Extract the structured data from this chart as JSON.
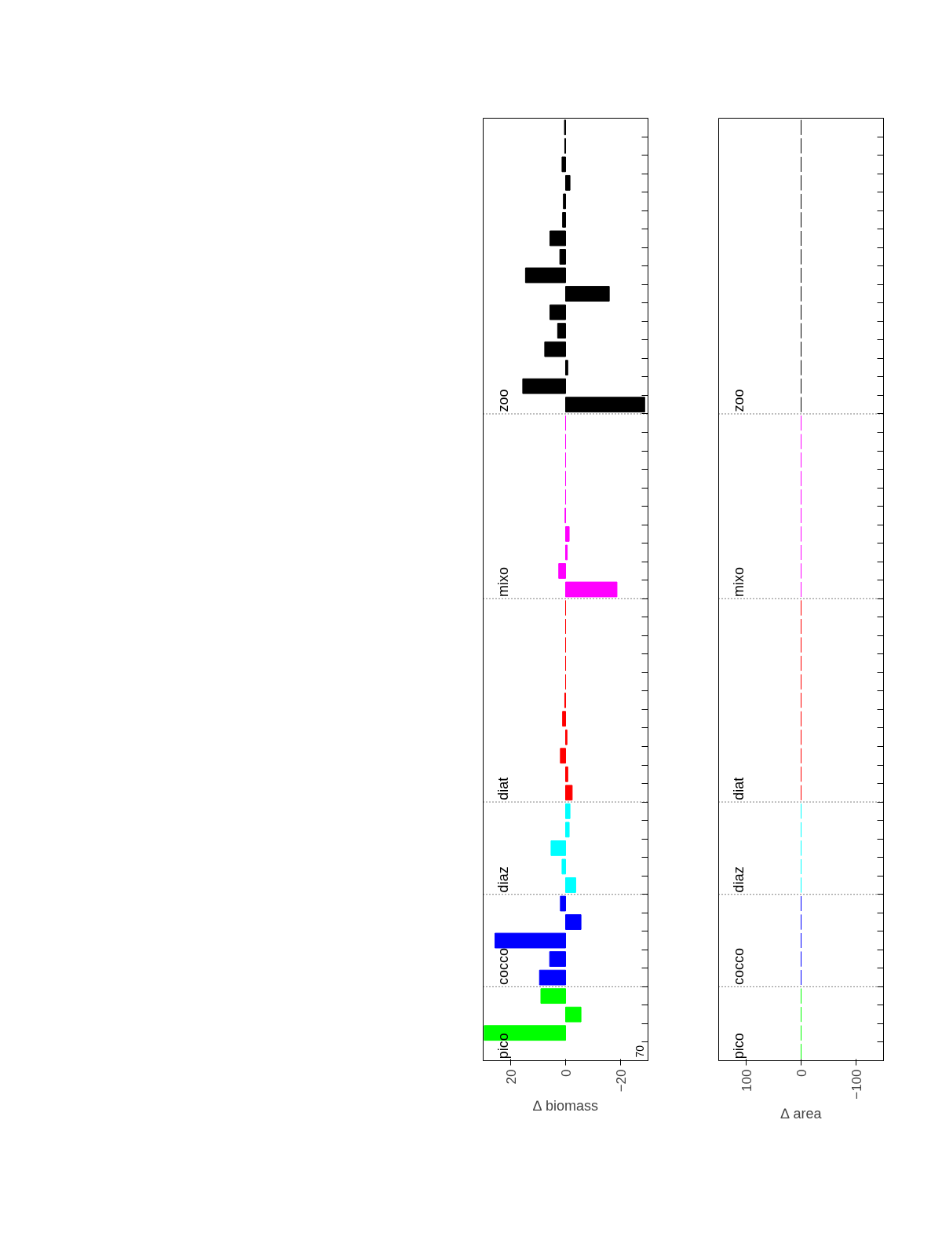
{
  "chart_data": [
    {
      "type": "bar",
      "orientation": "horizontal",
      "xlabel": "∆ biomass",
      "xlim": [
        30,
        -30
      ],
      "xticks": [
        20,
        0,
        -20
      ],
      "grid": false,
      "legend": false,
      "tick_labels": "x",
      "categories": [
        null,
        null,
        null,
        null,
        null,
        null,
        null,
        null,
        null,
        null,
        null,
        null,
        null,
        null,
        null,
        null,
        null,
        null,
        null,
        null,
        null,
        null,
        null,
        null,
        null,
        null,
        null,
        null,
        null,
        null,
        null,
        null,
        null,
        null,
        null,
        null,
        null,
        null,
        null,
        null,
        null,
        null,
        null,
        null,
        null,
        null,
        null,
        null,
        null,
        null,
        null
      ],
      "annotations": [
        "zoo",
        "mixo",
        "diat",
        "diaz",
        "cocco",
        "pico",
        "70"
      ],
      "values": [
        0.4,
        0.3,
        1.3,
        -1.6,
        0.8,
        1.1,
        5.7,
        2.1,
        14.6,
        -15.9,
        5.7,
        2.9,
        7.6,
        -0.8,
        15.6,
        -28.8,
        0,
        0,
        0,
        0,
        0,
        0.2,
        -1.3,
        -0.6,
        2.5,
        -18.7,
        0,
        0,
        0,
        0,
        0,
        0.3,
        1.1,
        -0.5,
        1.9,
        -0.8,
        -2.4,
        -1.6,
        -1.3,
        5.3,
        1.3,
        -3.7,
        1.9,
        -5.6,
        25.7,
        5.8,
        9.5,
        9.0,
        -5.6,
        29.6,
        null
      ],
      "colors": [
        "#000000",
        "#000000",
        "#000000",
        "#000000",
        "#000000",
        "#000000",
        "#000000",
        "#000000",
        "#000000",
        "#000000",
        "#000000",
        "#000000",
        "#000000",
        "#000000",
        "#000000",
        "#000000",
        "#ff00ff",
        "#ff00ff",
        "#ff00ff",
        "#ff00ff",
        "#ff00ff",
        "#ff00ff",
        "#ff00ff",
        "#ff00ff",
        "#ff00ff",
        "#ff00ff",
        "#ff0000",
        "#ff0000",
        "#ff0000",
        "#ff0000",
        "#ff0000",
        "#ff0000",
        "#ff0000",
        "#ff0000",
        "#ff0000",
        "#ff0000",
        "#ff0000",
        "#00ffff",
        "#00ffff",
        "#00ffff",
        "#00ffff",
        "#00ffff",
        "#0000ff",
        "#0000ff",
        "#0000ff",
        "#0000ff",
        "#0000ff",
        "#00ff00",
        "#00ff00",
        "#00ff00",
        "#00ff00"
      ]
    },
    {
      "type": "bar",
      "orientation": "horizontal",
      "xlabel": "∆ area",
      "xlim": [
        150,
        -150
      ],
      "xticks": [
        100,
        0,
        -100
      ],
      "grid": false,
      "legend": false,
      "tick_labels": "x",
      "categories": [
        null,
        null,
        null,
        null,
        null,
        null,
        null,
        null,
        null,
        null,
        null,
        null,
        null,
        null,
        null,
        null,
        null,
        null,
        null,
        null,
        null,
        null,
        null,
        null,
        null,
        null,
        null,
        null,
        null,
        null,
        null,
        null,
        null,
        null,
        null,
        null,
        null,
        null,
        null,
        null,
        null,
        null,
        null,
        null,
        null,
        null,
        null,
        null,
        null,
        null,
        null
      ],
      "annotations": [
        "zoo",
        "mixo",
        "diat",
        "diaz",
        "cocco",
        "pico"
      ],
      "values": [
        0,
        0,
        0,
        0,
        0,
        0,
        0,
        0,
        0,
        0,
        0,
        0,
        0,
        0,
        0,
        0,
        0,
        0,
        0,
        0,
        0,
        0,
        0,
        0,
        0,
        0,
        0,
        0,
        0,
        0,
        0,
        0,
        0,
        0,
        0,
        0,
        0,
        0,
        0,
        0,
        0,
        0,
        0,
        0,
        0,
        0,
        0,
        0,
        0,
        0,
        0
      ],
      "colors": [
        "#000000",
        "#000000",
        "#000000",
        "#000000",
        "#000000",
        "#000000",
        "#000000",
        "#000000",
        "#000000",
        "#000000",
        "#000000",
        "#000000",
        "#000000",
        "#000000",
        "#000000",
        "#000000",
        "#ff00ff",
        "#ff00ff",
        "#ff00ff",
        "#ff00ff",
        "#ff00ff",
        "#ff00ff",
        "#ff00ff",
        "#ff00ff",
        "#ff00ff",
        "#ff00ff",
        "#ff0000",
        "#ff0000",
        "#ff0000",
        "#ff0000",
        "#ff0000",
        "#ff0000",
        "#ff0000",
        "#ff0000",
        "#ff0000",
        "#ff0000",
        "#ff0000",
        "#00ffff",
        "#00ffff",
        "#00ffff",
        "#00ffff",
        "#00ffff",
        "#0000ff",
        "#0000ff",
        "#0000ff",
        "#0000ff",
        "#0000ff",
        "#00ff00",
        "#00ff00",
        "#00ff00",
        "#00ff00"
      ]
    }
  ]
}
